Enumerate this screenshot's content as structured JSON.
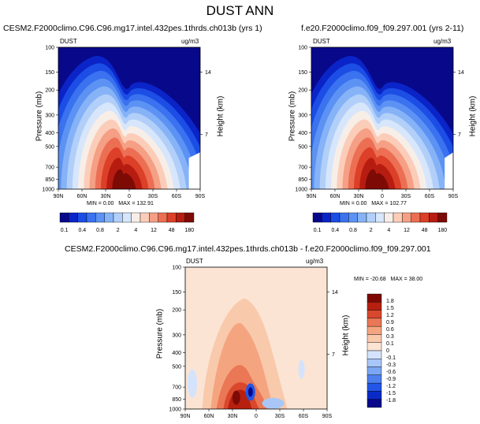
{
  "main_title": "DUST ANN",
  "colors": {
    "seq_palette": [
      "#08088a",
      "#0a24c8",
      "#1c4ee6",
      "#3a72ef",
      "#5c92f3",
      "#86b3f7",
      "#b1cff9",
      "#d7e6fb",
      "#f8eee8",
      "#fbcdb9",
      "#f59f85",
      "#ec6f53",
      "#dc4028",
      "#b71c10",
      "#7d0a05"
    ],
    "diff_palette": [
      "#08088a",
      "#0a2ac8",
      "#2356e6",
      "#4d80ee",
      "#7aa6f4",
      "#a8c7f8",
      "#d4e3fb",
      "#fbe4d3",
      "#f9c9ac",
      "#f4a580",
      "#ea7755",
      "#d9472d",
      "#b7200f",
      "#7d0a05"
    ]
  },
  "chart_data": [
    {
      "type": "heatmap",
      "title": "CESM2.F2000climo.C96.C96.mg17.intel.432pes.1thrds.ch013b (yrs 1)",
      "variable": "DUST",
      "units": "ug/m3",
      "ylabel": "Pressure (mb)",
      "y2label": "Height (km)",
      "x_ticks": [
        "90N",
        "60N",
        "30N",
        "0",
        "30S",
        "60S",
        "90S"
      ],
      "y_ticks": [
        "100",
        "150",
        "200",
        "300",
        "400",
        "500",
        "700",
        "850",
        "1000"
      ],
      "y2_ticks": [
        "14",
        "7"
      ],
      "stats": {
        "min_label": "MIN =",
        "min": "0.00",
        "max_label": "MAX =",
        "max": "132.91"
      },
      "colorbar_labels": [
        "0.1",
        "0.4",
        "0.8",
        "2",
        "4",
        "12",
        "48",
        "180"
      ],
      "ylim": [
        1000,
        100
      ]
    },
    {
      "type": "heatmap",
      "title": "f.e20.F2000climo.f09_f09.297.001 (yrs 2-11)",
      "variable": "DUST",
      "units": "ug/m3",
      "ylabel": "Pressure (mb)",
      "y2label": "Height (km)",
      "x_ticks": [
        "90N",
        "60N",
        "30N",
        "0",
        "30S",
        "60S",
        "90S"
      ],
      "y_ticks": [
        "100",
        "150",
        "200",
        "300",
        "400",
        "500",
        "700",
        "850",
        "1000"
      ],
      "y2_ticks": [
        "14",
        "7"
      ],
      "stats": {
        "min_label": "MIN =",
        "min": "0.00",
        "max_label": "MAX =",
        "max": "102.77"
      },
      "colorbar_labels": [
        "0.1",
        "0.4",
        "0.8",
        "2",
        "4",
        "12",
        "48",
        "180"
      ],
      "ylim": [
        1000,
        100
      ]
    },
    {
      "type": "heatmap",
      "title": "CESM2.F2000climo.C96.C96.mg17.intel.432pes.1thrds.ch013b - f.e20.F2000climo.f09_f09.297.001",
      "variable": "DUST",
      "units": "ug/m3",
      "ylabel": "Pressure (mb)",
      "y2label": "Height (km)",
      "x_ticks": [
        "90N",
        "60N",
        "30N",
        "0",
        "30S",
        "60S",
        "90S"
      ],
      "y_ticks": [
        "100",
        "150",
        "200",
        "300",
        "400",
        "500",
        "700",
        "850",
        "1000"
      ],
      "y2_ticks": [
        "14",
        "7"
      ],
      "stats": {
        "min_label": "MIN =",
        "min": "-20.68",
        "max_label": "MAX =",
        "max": "38.00"
      },
      "colorbar_labels": [
        "1.8",
        "1.5",
        "1.2",
        "0.9",
        "0.6",
        "0.3",
        "0.1",
        "0",
        "-0.1",
        "-0.3",
        "-0.6",
        "-0.9",
        "-1.2",
        "-1.5",
        "-1.8"
      ],
      "ylim": [
        1000,
        100
      ]
    }
  ]
}
